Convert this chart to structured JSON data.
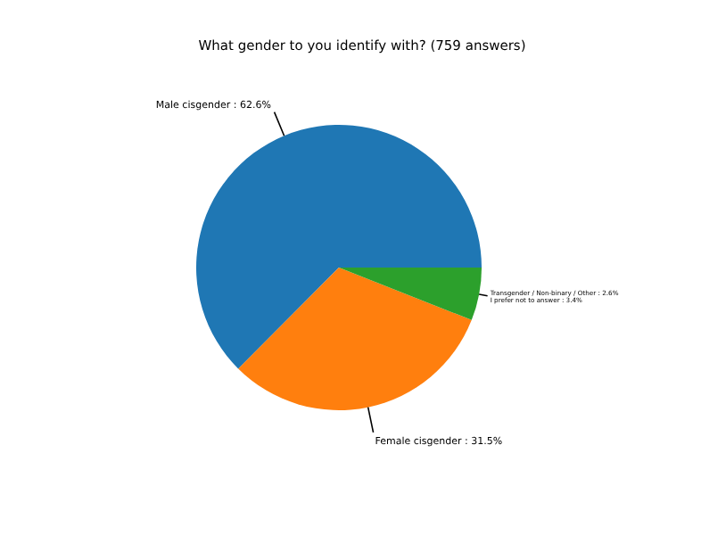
{
  "chart_data": {
    "type": "pie",
    "title": "What gender to you identify with? (759 answers)",
    "categories": [
      "Male cisgender : 62.6%",
      "Female cisgender : 31.5%",
      "Transgender / Non-binary / Other : 2.6%\nI prefer not to answer : 3.4%"
    ],
    "values": [
      62.6,
      31.5,
      6.0
    ],
    "colors": [
      "#1f77b4",
      "#ff7f0e",
      "#2ca02c"
    ]
  }
}
